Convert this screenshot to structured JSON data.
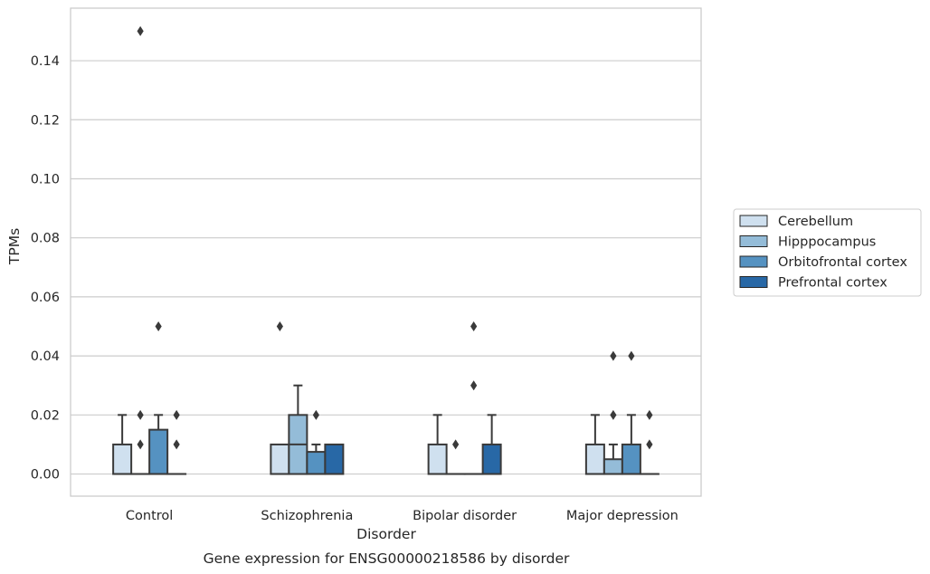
{
  "chart_data": {
    "type": "box",
    "caption": "Gene expression for ENSG00000218586 by disorder",
    "xlabel": "Disorder",
    "ylabel": "TPMs",
    "ylim": [
      -0.0075,
      0.1578
    ],
    "yticks": [
      "0.00",
      "0.02",
      "0.04",
      "0.06",
      "0.08",
      "0.10",
      "0.12",
      "0.14"
    ],
    "ytick_values": [
      0,
      0.02,
      0.04,
      0.06,
      0.08,
      0.1,
      0.12,
      0.14
    ],
    "categories": [
      "Control",
      "Schizophrenia",
      "Bipolar disorder",
      "Major depression"
    ],
    "grid": "horizontal",
    "legend_position": "right-center",
    "series": [
      {
        "name": "Cerebellum",
        "color": "#cfe0ef",
        "boxes": [
          {
            "q1": 0,
            "median": 0,
            "q3": 0.01,
            "whisker_low": 0,
            "whisker_high": 0.02,
            "outliers": []
          },
          {
            "q1": 0,
            "median": 0,
            "q3": 0.01,
            "whisker_low": 0,
            "whisker_high": 0.01,
            "outliers": [
              0.05
            ]
          },
          {
            "q1": 0,
            "median": 0,
            "q3": 0.01,
            "whisker_low": 0,
            "whisker_high": 0.02,
            "outliers": []
          },
          {
            "q1": 0,
            "median": 0,
            "q3": 0.01,
            "whisker_low": 0,
            "whisker_high": 0.02,
            "outliers": []
          }
        ]
      },
      {
        "name": "Hipppocampus",
        "color": "#94bcd8",
        "boxes": [
          {
            "q1": 0,
            "median": 0,
            "q3": 0,
            "whisker_low": 0,
            "whisker_high": 0,
            "outliers": [
              0.01,
              0.02,
              0.15
            ]
          },
          {
            "q1": 0,
            "median": 0.01,
            "q3": 0.02,
            "whisker_low": 0,
            "whisker_high": 0.03,
            "outliers": []
          },
          {
            "q1": 0,
            "median": 0,
            "q3": 0,
            "whisker_low": 0,
            "whisker_high": 0,
            "outliers": [
              0.01
            ]
          },
          {
            "q1": 0,
            "median": 0,
            "q3": 0.005,
            "whisker_low": 0,
            "whisker_high": 0.01,
            "outliers": [
              0.02,
              0.04
            ]
          }
        ]
      },
      {
        "name": "Orbitofrontal cortex",
        "color": "#5592c1",
        "boxes": [
          {
            "q1": 0,
            "median": 0,
            "q3": 0.015,
            "whisker_low": 0,
            "whisker_high": 0.02,
            "outliers": [
              0.05
            ]
          },
          {
            "q1": 0,
            "median": 0,
            "q3": 0.0075,
            "whisker_low": 0,
            "whisker_high": 0.01,
            "outliers": [
              0.02
            ]
          },
          {
            "q1": 0,
            "median": 0,
            "q3": 0,
            "whisker_low": 0,
            "whisker_high": 0,
            "outliers": [
              0.03,
              0.05
            ]
          },
          {
            "q1": 0,
            "median": 0,
            "q3": 0.01,
            "whisker_low": 0,
            "whisker_high": 0.02,
            "outliers": [
              0.04
            ]
          }
        ]
      },
      {
        "name": "Prefrontal cortex",
        "color": "#2868a6",
        "boxes": [
          {
            "q1": 0,
            "median": 0,
            "q3": 0,
            "whisker_low": 0,
            "whisker_high": 0,
            "outliers": [
              0.01,
              0.02
            ]
          },
          {
            "q1": 0,
            "median": 0,
            "q3": 0.01,
            "whisker_low": 0,
            "whisker_high": 0.01,
            "outliers": []
          },
          {
            "q1": 0,
            "median": 0,
            "q3": 0.01,
            "whisker_low": 0,
            "whisker_high": 0.02,
            "outliers": []
          },
          {
            "q1": 0,
            "median": 0,
            "q3": 0,
            "whisker_low": 0,
            "whisker_high": 0,
            "outliers": [
              0.01,
              0.02
            ]
          }
        ]
      }
    ]
  }
}
